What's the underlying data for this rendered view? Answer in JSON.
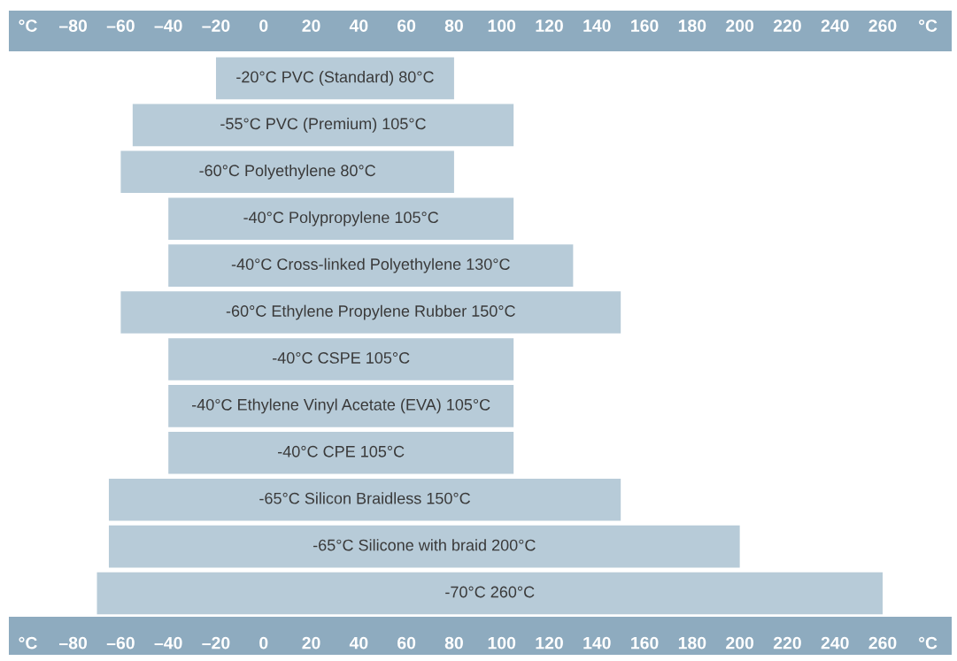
{
  "chart_data": {
    "type": "bar",
    "orientation": "horizontal",
    "categories": [
      "-20°C PVC (Standard) 80°C",
      "-55°C PVC (Premium) 105°C",
      "-60°C Polyethylene 80°C",
      "-40°C Polypropylene 105°C",
      "-40°C Cross-linked Polyethylene 130°C",
      "-60°C Ethylene Propylene Rubber 150°C",
      "-40°C CSPE 105°C",
      "-40°C Ethylene Vinyl Acetate (EVA) 105°C",
      "-40°C CPE 105°C",
      "-65°C Silicon Braidless 150°C",
      "-65°C Silicone with braid 200°C",
      "-70°C 260°C"
    ],
    "base": [
      -20,
      -55,
      -60,
      -40,
      -40,
      -60,
      -40,
      -40,
      -40,
      -65,
      -65,
      -70
    ],
    "values": [
      100,
      160,
      140,
      145,
      170,
      210,
      145,
      145,
      145,
      215,
      265,
      330
    ],
    "color": "#b7cbd8",
    "xlim": [
      -107,
      289
    ],
    "xticks": [
      {
        "value": -99,
        "label": "°C"
      },
      {
        "value": -80,
        "label": "–80"
      },
      {
        "value": -60,
        "label": "–60"
      },
      {
        "value": -40,
        "label": "–40"
      },
      {
        "value": -20,
        "label": "–20"
      },
      0,
      20,
      40,
      60,
      80,
      100,
      120,
      140,
      160,
      180,
      200,
      220,
      240,
      260,
      {
        "value": 279,
        "label": "°C"
      }
    ],
    "x2lim": [
      -107,
      289
    ],
    "x2ticks": [
      {
        "value": -99,
        "label": "°C"
      },
      {
        "value": -80,
        "label": "–80"
      },
      {
        "value": -60,
        "label": "–60"
      },
      {
        "value": -40,
        "label": "–40"
      },
      {
        "value": -20,
        "label": "–20"
      },
      0,
      20,
      40,
      60,
      80,
      100,
      120,
      140,
      160,
      180,
      200,
      220,
      240,
      260,
      {
        "value": 279,
        "label": "°C"
      }
    ],
    "grid": false,
    "legend": false
  }
}
